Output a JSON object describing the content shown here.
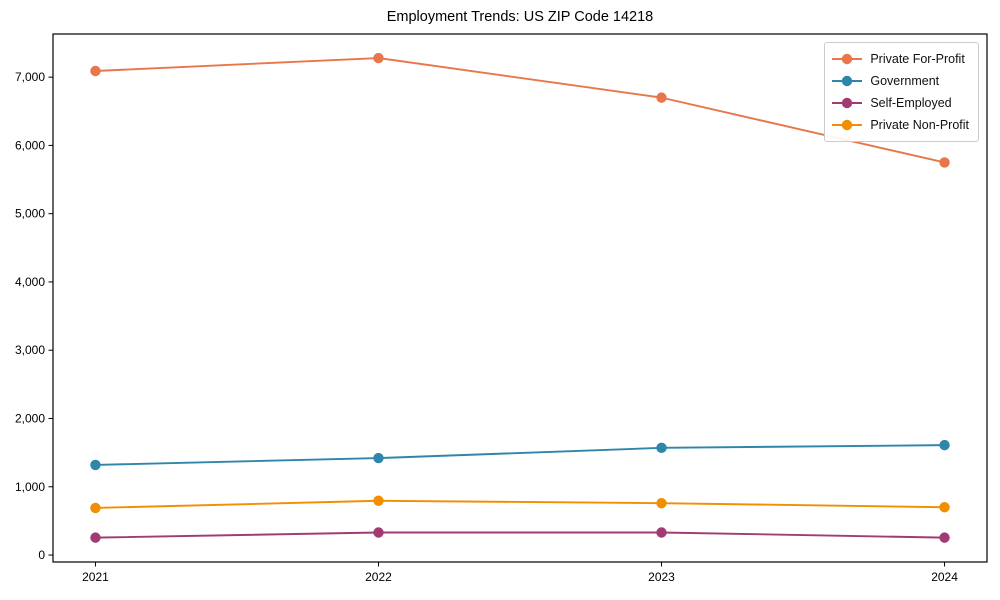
{
  "title": "Employment Trends: US ZIP Code 14218",
  "axis_color": "#000000",
  "legend_border_color": "#cccccc",
  "chart_data": {
    "type": "line",
    "title": "Employment Trends: US ZIP Code 14218",
    "xlabel": "",
    "ylabel": "",
    "x": [
      2021,
      2022,
      2023,
      2024
    ],
    "x_tick_labels": [
      "2021",
      "2022",
      "2023",
      "2024"
    ],
    "y_ticks": [
      0,
      1000,
      2000,
      3000,
      4000,
      5000,
      6000,
      7000
    ],
    "y_tick_labels": [
      "0",
      "1,000",
      "2,000",
      "3,000",
      "4,000",
      "5,000",
      "6,000",
      "7,000"
    ],
    "xlim": [
      2020.85,
      2024.15
    ],
    "ylim": [
      -102,
      7632
    ],
    "grid": false,
    "legend_position": "upper right",
    "marker": "circle",
    "series": [
      {
        "name": "Private For-Profit",
        "color": "#E8764B",
        "values": [
          7090,
          7280,
          6700,
          5750
        ]
      },
      {
        "name": "Government",
        "color": "#2E86AB",
        "values": [
          1320,
          1420,
          1570,
          1610
        ]
      },
      {
        "name": "Self-Employed",
        "color": "#A23B72",
        "values": [
          255,
          330,
          330,
          255
        ]
      },
      {
        "name": "Private Non-Profit",
        "color": "#F18F01",
        "values": [
          690,
          795,
          760,
          700
        ]
      }
    ]
  }
}
